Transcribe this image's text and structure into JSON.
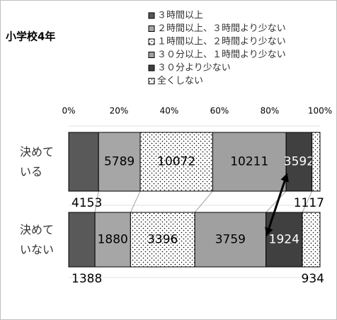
{
  "chart_data": {
    "type": "stacked-bar-100",
    "title": "小学校4年",
    "categories": [
      "決めて\nいる",
      "決めて\nいない"
    ],
    "series": [
      {
        "name": "３時間以上",
        "color": "#595959",
        "label_color": "#000000",
        "values": [
          4153,
          1388
        ]
      },
      {
        "name": "２時間以上、３時間より少ない",
        "color": "#a6a6a6",
        "label_color": "#000000",
        "values": [
          5789,
          1880
        ]
      },
      {
        "name": "１時間以上、２時間より少ない",
        "color": "#ffffff",
        "pattern": "dots",
        "label_color": "#000000",
        "values": [
          10072,
          3396
        ]
      },
      {
        "name": "３０分以上、１時間より少ない",
        "color": "#a0a0a0",
        "label_color": "#000000",
        "values": [
          10211,
          3759
        ]
      },
      {
        "name": "３０分より少ない",
        "color": "#404040",
        "label_color": "#ffffff",
        "values": [
          3592,
          1924
        ]
      },
      {
        "name": "全くしない",
        "color": "#ffffff",
        "pattern": "dots",
        "label_color": "#000000",
        "values": [
          1117,
          934
        ]
      }
    ],
    "xlim": [
      0,
      100
    ],
    "xticks": [
      {
        "value": 0,
        "label": "0%"
      },
      {
        "value": 20,
        "label": "20%"
      },
      {
        "value": 40,
        "label": "40%"
      },
      {
        "value": 60,
        "label": "60%"
      },
      {
        "value": 80,
        "label": "80%"
      },
      {
        "value": 100,
        "label": "100%"
      }
    ]
  }
}
